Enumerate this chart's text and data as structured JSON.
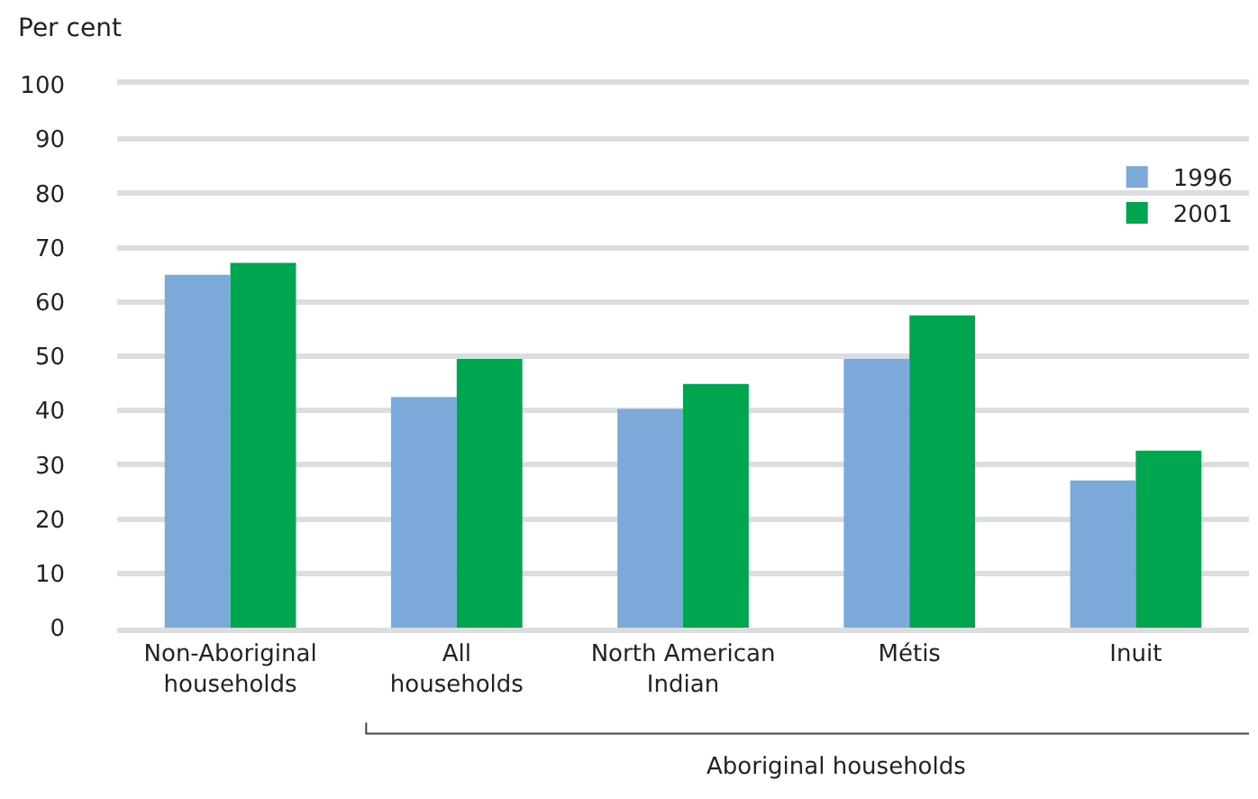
{
  "chart_data": {
    "type": "bar",
    "ylabel": "Per cent",
    "categories": [
      "Non-Aboriginal\nhouseholds",
      "All\nhouseholds",
      "North American\nIndian",
      "Métis",
      "Inuit"
    ],
    "series": [
      {
        "name": "1996",
        "color": "#7aa9da",
        "values": [
          65,
          42.5,
          40.3,
          49.5,
          27.1
        ]
      },
      {
        "name": "2001",
        "color": "#00a54f",
        "values": [
          67.2,
          49.5,
          44.9,
          57.5,
          32.6
        ]
      }
    ],
    "ylim": [
      0,
      100
    ],
    "yticks": [
      0,
      10,
      20,
      30,
      40,
      50,
      60,
      70,
      80,
      90,
      100
    ],
    "grid": "y",
    "legend": "top right",
    "annotations": [
      "Aboriginal households"
    ]
  }
}
